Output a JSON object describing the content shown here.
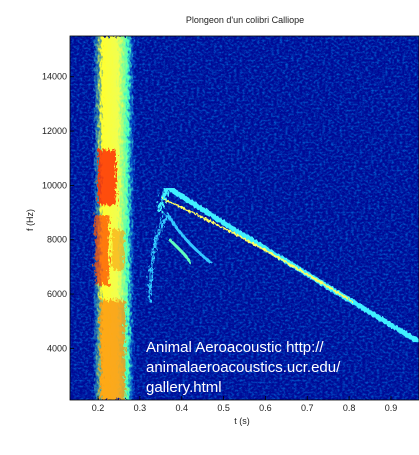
{
  "chart_data": {
    "type": "spectrogram",
    "title": "Plongeon d'un colibri Calliope",
    "xlabel": "t (s)",
    "ylabel": "f (Hz)",
    "xlim": [
      0.133,
      0.967
    ],
    "xticks": [
      0.2,
      0.3,
      0.4,
      0.5,
      0.6,
      0.7,
      0.8,
      0.9
    ],
    "ylim": [
      2100,
      15500
    ],
    "yticks": [
      4000,
      6000,
      8000,
      10000,
      12000,
      14000
    ],
    "annotation": [
      "Animal Aeroacoustic http://",
      "animalaeroacoustics.ucr.edu/",
      "gallery.html"
    ]
  }
}
